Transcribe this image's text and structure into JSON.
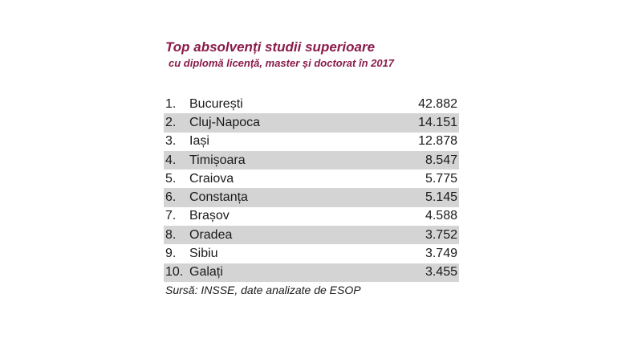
{
  "title": "Top absolvenți studii superioare",
  "subtitle": "cu diplomă licență, master și doctorat în 2017",
  "rows": [
    {
      "rank": "1.",
      "city": "București",
      "value": "42.882"
    },
    {
      "rank": "2.",
      "city": "Cluj-Napoca",
      "value": "14.151"
    },
    {
      "rank": "3.",
      "city": "Iași",
      "value": "12.878"
    },
    {
      "rank": "4.",
      "city": "Timișoara",
      "value": "8.547"
    },
    {
      "rank": "5.",
      "city": "Craiova",
      "value": "5.775"
    },
    {
      "rank": "6.",
      "city": "Constanța",
      "value": "5.145"
    },
    {
      "rank": "7.",
      "city": "Brașov",
      "value": "4.588"
    },
    {
      "rank": "8.",
      "city": "Oradea",
      "value": "3.752"
    },
    {
      "rank": "9.",
      "city": "Sibiu",
      "value": "3.749"
    },
    {
      "rank": "10.",
      "city": "Galați",
      "value": "3.455"
    }
  ],
  "source": "Sursă: INSSE, date analizate de ESOP",
  "colors": {
    "title": "#8a1a4a",
    "shade": "#d4d4d4"
  }
}
